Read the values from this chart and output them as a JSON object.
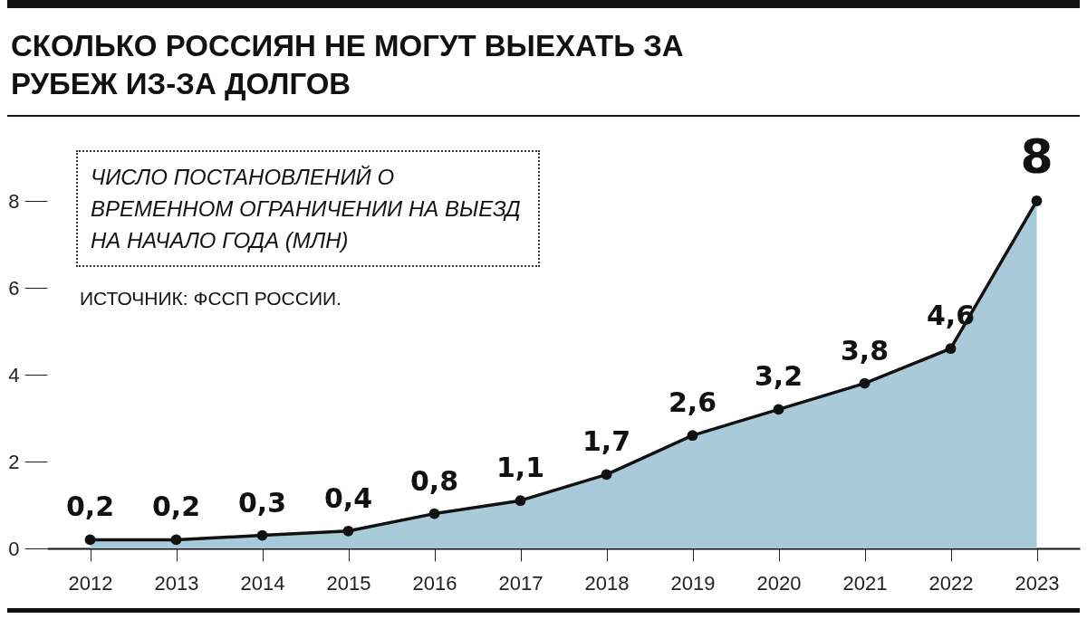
{
  "chart_data": {
    "type": "area",
    "title": "СКОЛЬКО РОССИЯН НЕ МОГУТ ВЫЕХАТЬ ЗА РУБЕЖ ИЗ-ЗА ДОЛГОВ",
    "annotations": [
      "ЧИСЛО ПОСТАНОВЛЕНИЙ О ВРЕМЕННОМ ОГРАНИЧЕНИИ НА ВЫЕЗД НА НАЧАЛО ГОДА (МЛН)",
      "ИСТОЧНИК: ФССП РОССИИ."
    ],
    "categories": [
      "2012",
      "2013",
      "2014",
      "2015",
      "2016",
      "2017",
      "2018",
      "2019",
      "2020",
      "2021",
      "2022",
      "2023"
    ],
    "series": [
      {
        "color": "#a9cbd9",
        "values": [
          0.2,
          0.2,
          0.3,
          0.4,
          0.8,
          1.1,
          1.7,
          2.6,
          3.2,
          3.8,
          4.6,
          8
        ],
        "value_labels": [
          "0,2",
          "0,2",
          "0,3",
          "0,4",
          "0,8",
          "1,1",
          "1,7",
          "2,6",
          "3,2",
          "3,8",
          "4,6",
          "8"
        ]
      }
    ],
    "ylim": [
      0,
      8
    ],
    "yticks": [
      0,
      2,
      4,
      6,
      8
    ],
    "marker": "circle",
    "grid": false
  }
}
